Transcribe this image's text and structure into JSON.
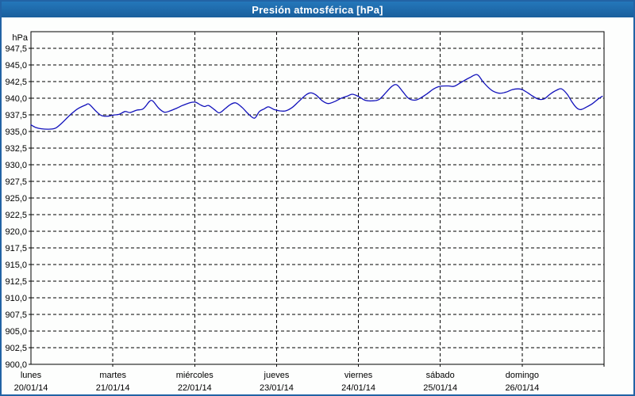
{
  "window": {
    "title": "Presión atmosférica [hPa]",
    "colors": {
      "titlebar": "#1e6dae",
      "frame_border": "#2263a5",
      "background": "#fdfefd",
      "line": "#1111bb",
      "grid": "#000000",
      "text": "#000000"
    }
  },
  "axes": {
    "unit_label": "hPa",
    "y_tick_labels": [
      "947,5",
      "945,0",
      "942,5",
      "940,0",
      "937,5",
      "935,0",
      "932,5",
      "930,0",
      "927,5",
      "925,0",
      "922,5",
      "920,0",
      "917,5",
      "915,0",
      "912,5",
      "910,0",
      "907,5",
      "905,0",
      "902,5",
      "900,0"
    ],
    "x_days": [
      {
        "name": "lunes",
        "date": "20/01/14"
      },
      {
        "name": "martes",
        "date": "21/01/14"
      },
      {
        "name": "miércoles",
        "date": "22/01/14"
      },
      {
        "name": "jueves",
        "date": "23/01/14"
      },
      {
        "name": "viernes",
        "date": "24/01/14"
      },
      {
        "name": "sábado",
        "date": "25/01/14"
      },
      {
        "name": "domingo",
        "date": "26/01/14"
      }
    ]
  },
  "chart_data": {
    "type": "line",
    "title": "Presión atmosférica [hPa]",
    "ylabel": "hPa",
    "xlabel": "",
    "ylim": [
      900,
      950
    ],
    "y_label_top": 947.5,
    "y_tick_step": 2.5,
    "xlim_days": [
      0,
      7
    ],
    "x_unit": "days from lunes 20/01/14 00:00",
    "grid": "dashed",
    "legend": "none",
    "series": [
      {
        "name": "Presión atmosférica",
        "x": [
          0,
          0.06,
          0.13,
          0.22,
          0.3,
          0.38,
          0.48,
          0.57,
          0.67,
          0.71,
          0.79,
          0.86,
          0.94,
          1.0,
          1.08,
          1.15,
          1.21,
          1.29,
          1.37,
          1.45,
          1.49,
          1.56,
          1.63,
          1.7,
          1.78,
          1.85,
          1.95,
          2.01,
          2.07,
          2.12,
          2.17,
          2.24,
          2.3,
          2.37,
          2.43,
          2.5,
          2.58,
          2.65,
          2.73,
          2.79,
          2.85,
          2.9,
          2.97,
          3.04,
          3.11,
          3.19,
          3.27,
          3.35,
          3.41,
          3.48,
          3.56,
          3.63,
          3.71,
          3.79,
          3.87,
          3.93,
          4.01,
          4.08,
          4.16,
          4.25,
          4.34,
          4.41,
          4.47,
          4.54,
          4.61,
          4.68,
          4.74,
          4.83,
          4.92,
          5.0,
          5.1,
          5.17,
          5.27,
          5.36,
          5.45,
          5.52,
          5.58,
          5.64,
          5.72,
          5.8,
          5.88,
          5.95,
          6.0,
          6.07,
          6.13,
          6.2,
          6.27,
          6.34,
          6.42,
          6.48,
          6.55,
          6.61,
          6.67,
          6.72,
          6.79,
          6.86,
          6.93,
          6.98
        ],
        "y": [
          936.0,
          935.6,
          935.4,
          935.35,
          935.5,
          936.3,
          937.5,
          938.4,
          939.0,
          939.1,
          938.1,
          937.4,
          937.3,
          937.45,
          937.6,
          938.0,
          937.85,
          938.2,
          938.4,
          939.55,
          939.55,
          938.5,
          937.9,
          938.1,
          938.5,
          938.9,
          939.35,
          939.4,
          939.0,
          938.75,
          938.9,
          938.3,
          937.8,
          938.4,
          939.0,
          939.3,
          938.6,
          937.7,
          937.0,
          938.0,
          938.4,
          938.7,
          938.3,
          938.1,
          938.1,
          938.6,
          939.5,
          940.4,
          940.8,
          940.5,
          939.6,
          939.2,
          939.5,
          940.0,
          940.35,
          940.6,
          940.2,
          939.7,
          939.6,
          939.8,
          940.9,
          941.8,
          942.0,
          941.0,
          940.0,
          939.7,
          939.9,
          940.6,
          941.4,
          941.8,
          941.85,
          941.8,
          942.5,
          943.1,
          943.55,
          942.5,
          941.7,
          941.1,
          940.75,
          940.9,
          941.3,
          941.4,
          941.3,
          940.8,
          940.3,
          939.85,
          939.9,
          940.6,
          941.2,
          941.4,
          940.6,
          939.4,
          938.5,
          938.3,
          938.7,
          939.2,
          939.9,
          940.3
        ]
      }
    ]
  }
}
